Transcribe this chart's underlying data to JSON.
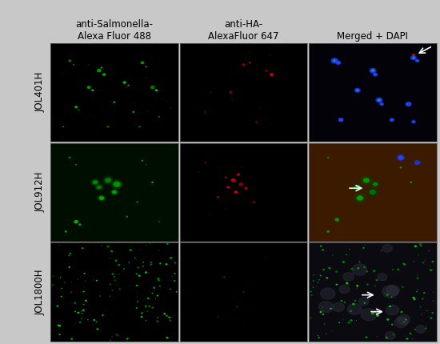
{
  "rows": [
    "JOL401H",
    "JOL912H",
    "JOL1800H"
  ],
  "cols": [
    "anti-Salmonella-\nAlexa Fluor 488",
    "anti-HA-\nAlexaFluor 647",
    "Merged + DAPI"
  ],
  "outer_bg": "#c8c8c8",
  "cell_bgs": {
    "0,0": "#000000",
    "0,1": "#000000",
    "0,2": "#000000",
    "1,0": "#000e00",
    "1,1": "#000000",
    "1,2": "#3c1a00",
    "2,0": "#000000",
    "2,1": "#000000",
    "2,2": "#000000"
  },
  "seed": 7
}
